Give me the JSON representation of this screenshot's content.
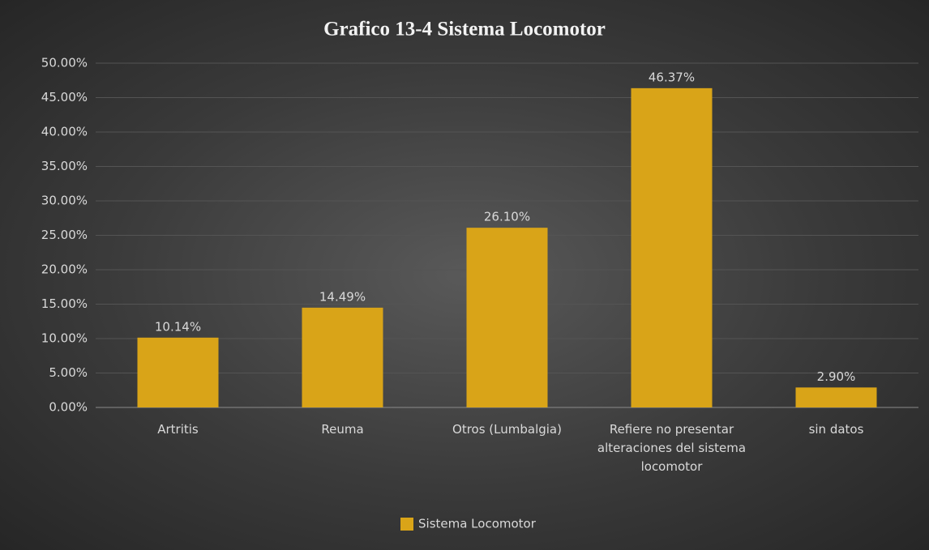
{
  "chart_data": {
    "type": "bar",
    "title": "Grafico 13-4 Sistema Locomotor",
    "categories": [
      "Artritis",
      "Reuma",
      "Otros (Lumbalgia)",
      "Refiere no presentar alteraciones del sistema locomotor",
      "sin datos"
    ],
    "series": [
      {
        "name": "Sistema Locomotor",
        "color": "#d9a418",
        "values": [
          10.14,
          14.49,
          26.1,
          46.37,
          2.9
        ],
        "value_labels": [
          "10.14%",
          "14.49%",
          "26.10%",
          "46.37%",
          "2.90%"
        ]
      }
    ],
    "ylim": [
      0,
      50
    ],
    "yticks": [
      {
        "value": 0,
        "label": "0.00%"
      },
      {
        "value": 5,
        "label": "5.00%"
      },
      {
        "value": 10,
        "label": "10.00%"
      },
      {
        "value": 15,
        "label": "15.00%"
      },
      {
        "value": 20,
        "label": "20.00%"
      },
      {
        "value": 25,
        "label": "25.00%"
      },
      {
        "value": 30,
        "label": "30.00%"
      },
      {
        "value": 35,
        "label": "35.00%"
      },
      {
        "value": 40,
        "label": "40.00%"
      },
      {
        "value": 45,
        "label": "45.00%"
      },
      {
        "value": 50,
        "label": "50.00%"
      }
    ],
    "grid": true,
    "legend": "bottom"
  }
}
